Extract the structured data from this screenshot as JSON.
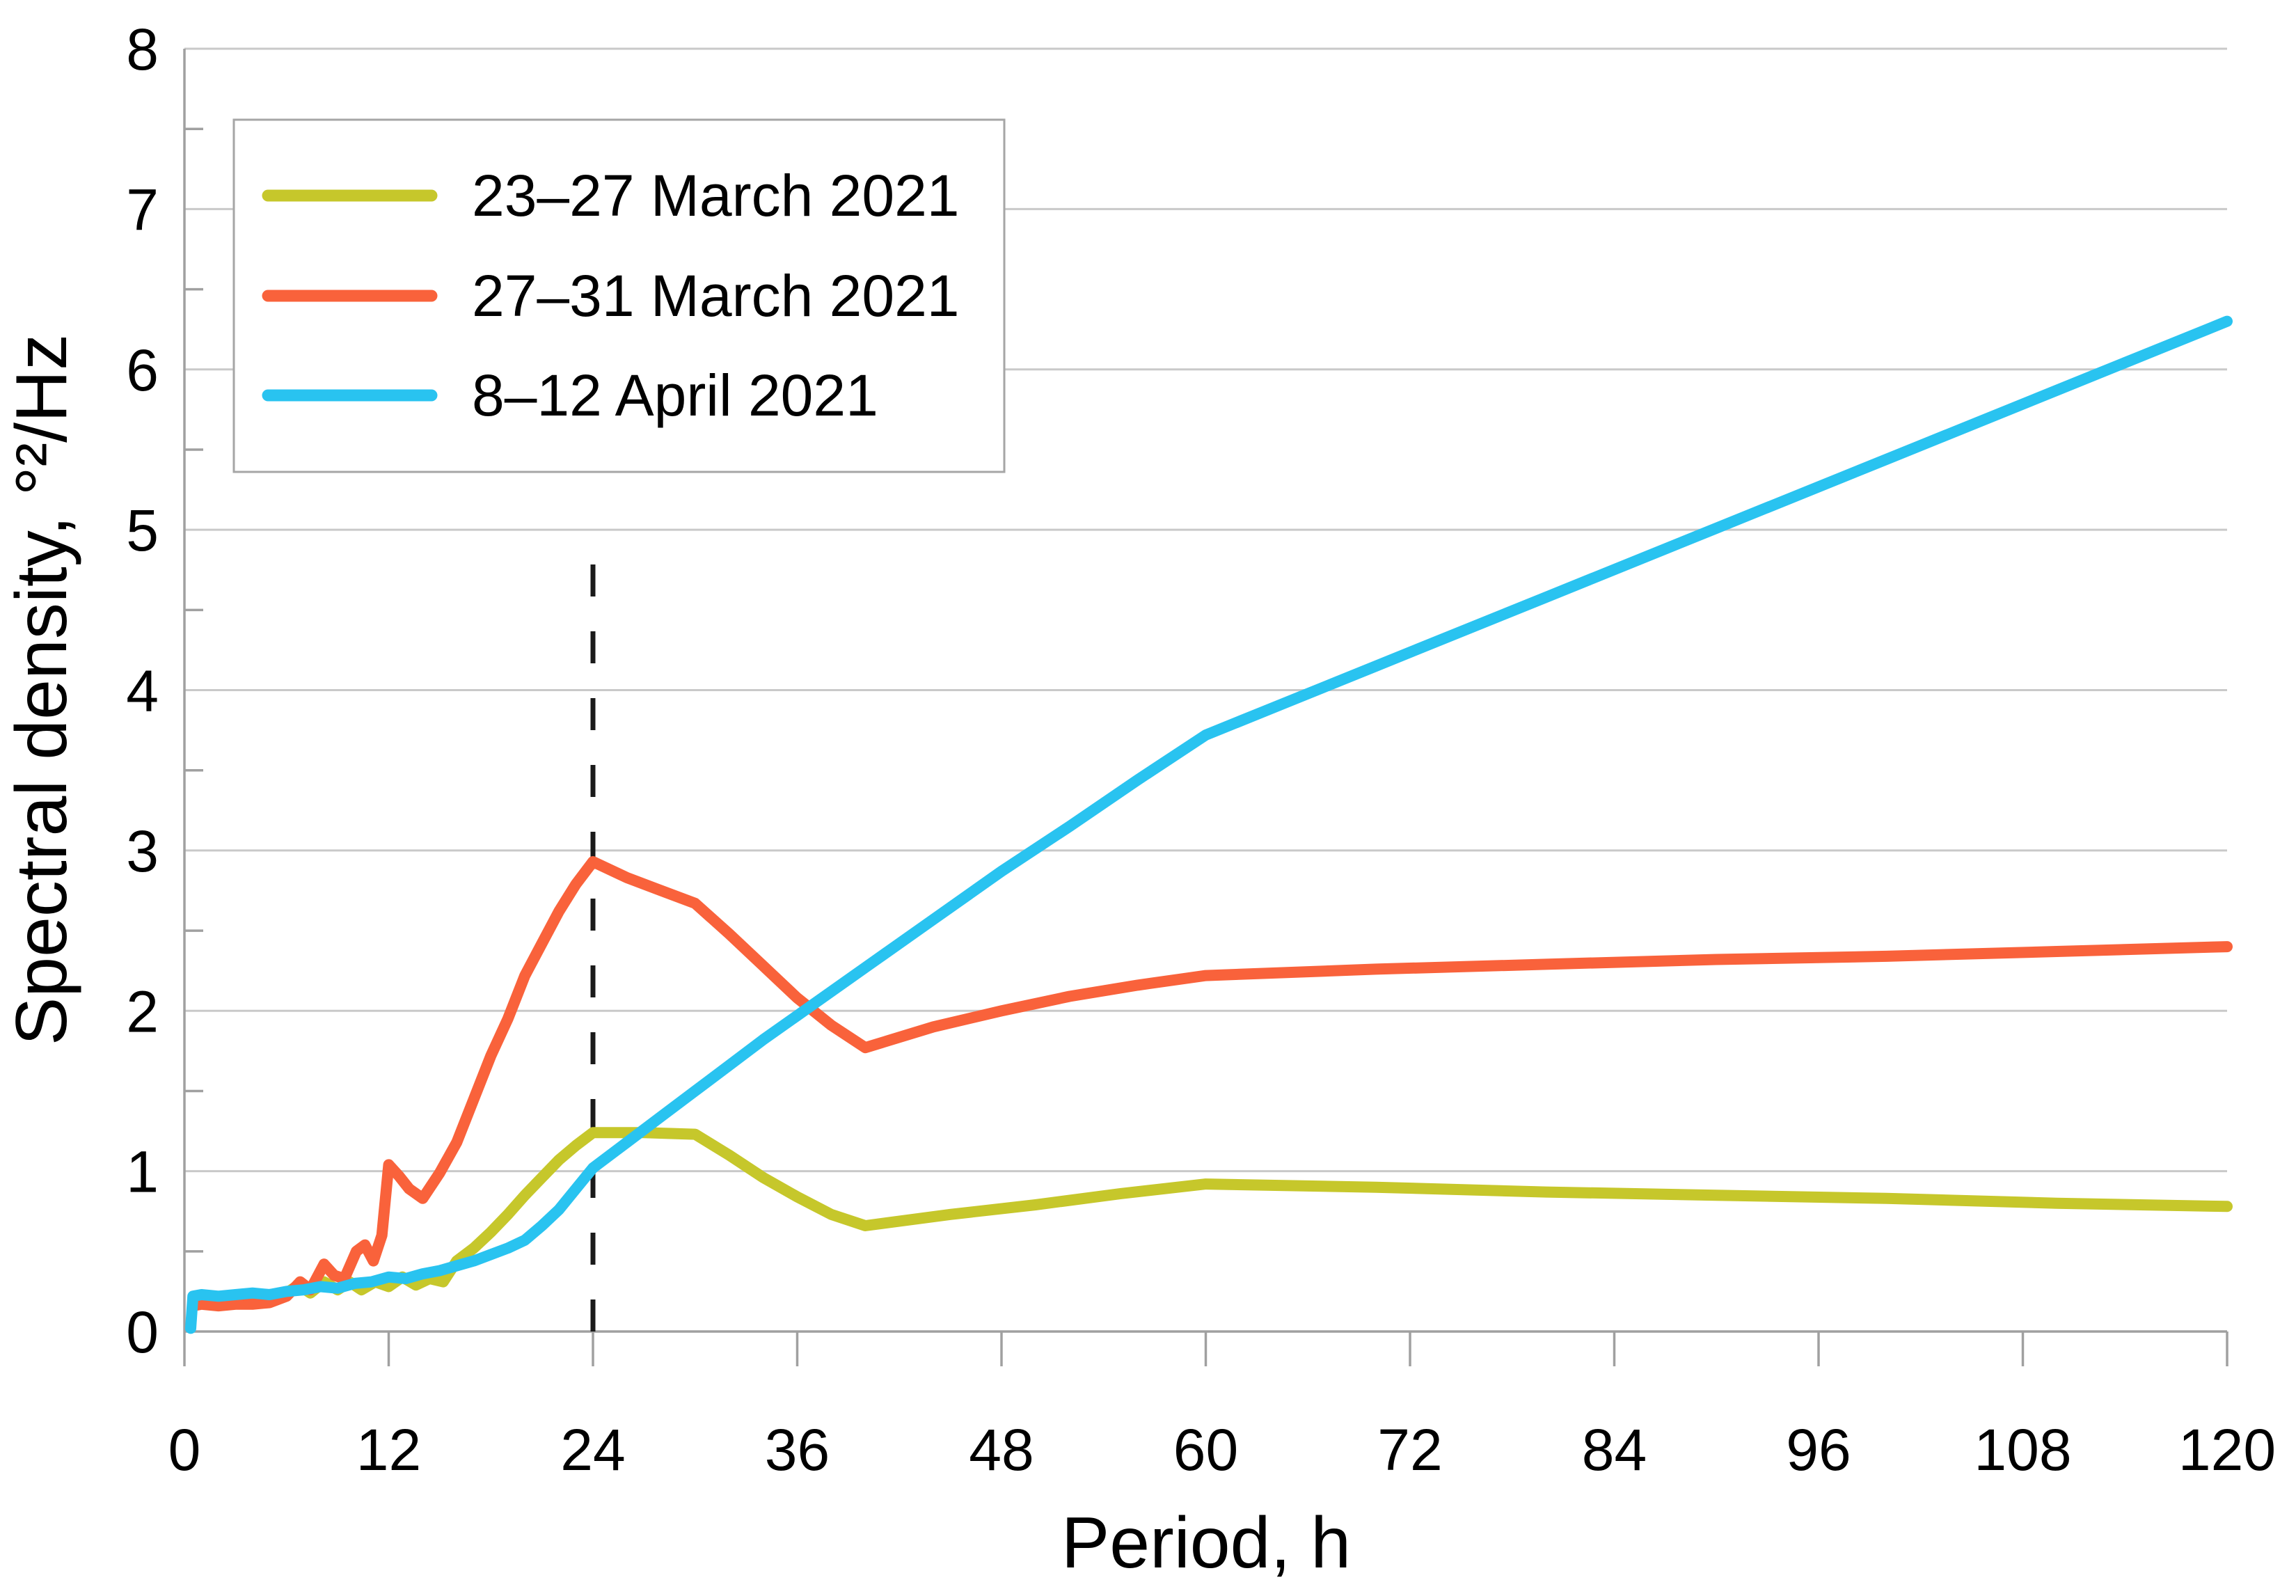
{
  "chart_data": {
    "type": "line",
    "title": "",
    "xlabel": "Period, h",
    "ylabel": "Spectral density, °²/Hz",
    "x_axis": {
      "min": 0,
      "max": 120,
      "tick_step": 12,
      "ticks": [
        0,
        12,
        24,
        36,
        48,
        60,
        72,
        84,
        96,
        108,
        120
      ]
    },
    "y_axis": {
      "min": 0,
      "max": 8,
      "tick_step": 1,
      "minor_tick_step": 0.5,
      "ticks": [
        0,
        1,
        2,
        3,
        4,
        5,
        6,
        7,
        8
      ]
    },
    "grid": "horizontal-only",
    "legend_position": "top-left",
    "annotation": {
      "type": "vertical-dashed-line",
      "x": 24,
      "y_bottom": 0,
      "y_top": 4.85
    },
    "series": [
      {
        "name": "23–27 March 2021",
        "color": "#c6c72b",
        "points": [
          [
            0.5,
            0.2
          ],
          [
            1,
            0.2
          ],
          [
            2,
            0.21
          ],
          [
            3,
            0.21
          ],
          [
            4,
            0.22
          ],
          [
            5,
            0.23
          ],
          [
            6,
            0.24
          ],
          [
            6.7,
            0.29
          ],
          [
            7.4,
            0.24
          ],
          [
            8.2,
            0.31
          ],
          [
            9,
            0.26
          ],
          [
            9.7,
            0.31
          ],
          [
            10.4,
            0.26
          ],
          [
            11.2,
            0.31
          ],
          [
            12,
            0.28
          ],
          [
            12.8,
            0.34
          ],
          [
            13.6,
            0.29
          ],
          [
            14.4,
            0.33
          ],
          [
            15.2,
            0.31
          ],
          [
            16,
            0.44
          ],
          [
            17,
            0.52
          ],
          [
            18,
            0.62
          ],
          [
            19,
            0.73
          ],
          [
            20,
            0.85
          ],
          [
            21,
            0.96
          ],
          [
            22,
            1.07
          ],
          [
            23,
            1.16
          ],
          [
            24,
            1.24
          ],
          [
            27,
            1.24
          ],
          [
            30,
            1.23
          ],
          [
            32,
            1.1
          ],
          [
            34,
            0.96
          ],
          [
            36,
            0.84
          ],
          [
            38,
            0.73
          ],
          [
            40,
            0.66
          ],
          [
            45,
            0.73
          ],
          [
            50,
            0.79
          ],
          [
            55,
            0.86
          ],
          [
            60,
            0.92
          ],
          [
            70,
            0.9
          ],
          [
            80,
            0.87
          ],
          [
            90,
            0.85
          ],
          [
            100,
            0.83
          ],
          [
            110,
            0.8
          ],
          [
            120,
            0.78
          ]
        ]
      },
      {
        "name": "27–31 March 2021",
        "color": "#f9623b",
        "points": [
          [
            0.5,
            0.16
          ],
          [
            1,
            0.17
          ],
          [
            2,
            0.16
          ],
          [
            3,
            0.17
          ],
          [
            4,
            0.17
          ],
          [
            5,
            0.18
          ],
          [
            6,
            0.22
          ],
          [
            6.8,
            0.31
          ],
          [
            7.4,
            0.26
          ],
          [
            8.2,
            0.42
          ],
          [
            8.8,
            0.35
          ],
          [
            9.4,
            0.33
          ],
          [
            10.1,
            0.5
          ],
          [
            10.6,
            0.54
          ],
          [
            11.1,
            0.44
          ],
          [
            11.6,
            0.6
          ],
          [
            12,
            1.04
          ],
          [
            12.6,
            0.97
          ],
          [
            13.2,
            0.89
          ],
          [
            14,
            0.83
          ],
          [
            15,
            0.99
          ],
          [
            16,
            1.18
          ],
          [
            17,
            1.45
          ],
          [
            18,
            1.72
          ],
          [
            19,
            1.95
          ],
          [
            20,
            2.22
          ],
          [
            21,
            2.42
          ],
          [
            22,
            2.62
          ],
          [
            23,
            2.79
          ],
          [
            24,
            2.93
          ],
          [
            26,
            2.83
          ],
          [
            28,
            2.75
          ],
          [
            30,
            2.67
          ],
          [
            32,
            2.48
          ],
          [
            34,
            2.28
          ],
          [
            36,
            2.08
          ],
          [
            38,
            1.91
          ],
          [
            40,
            1.77
          ],
          [
            44,
            1.9
          ],
          [
            48,
            2.0
          ],
          [
            52,
            2.09
          ],
          [
            56,
            2.16
          ],
          [
            60,
            2.22
          ],
          [
            70,
            2.26
          ],
          [
            80,
            2.29
          ],
          [
            90,
            2.32
          ],
          [
            100,
            2.34
          ],
          [
            110,
            2.37
          ],
          [
            120,
            2.4
          ]
        ]
      },
      {
        "name": "8–12 April 2021",
        "color": "#29c3f0",
        "points": [
          [
            0.37,
            0.02
          ],
          [
            0.5,
            0.22
          ],
          [
            1,
            0.23
          ],
          [
            2,
            0.22
          ],
          [
            3,
            0.23
          ],
          [
            4,
            0.24
          ],
          [
            5,
            0.23
          ],
          [
            6,
            0.25
          ],
          [
            7,
            0.26
          ],
          [
            8,
            0.28
          ],
          [
            9,
            0.27
          ],
          [
            10,
            0.3
          ],
          [
            11,
            0.31
          ],
          [
            12,
            0.34
          ],
          [
            13,
            0.33
          ],
          [
            14,
            0.36
          ],
          [
            15,
            0.38
          ],
          [
            16,
            0.41
          ],
          [
            17,
            0.44
          ],
          [
            18,
            0.48
          ],
          [
            19,
            0.52
          ],
          [
            20,
            0.57
          ],
          [
            21,
            0.66
          ],
          [
            22,
            0.76
          ],
          [
            23,
            0.89
          ],
          [
            24,
            1.02
          ],
          [
            26,
            1.18
          ],
          [
            28,
            1.34
          ],
          [
            30,
            1.5
          ],
          [
            32,
            1.66
          ],
          [
            34,
            1.82
          ],
          [
            36,
            1.97
          ],
          [
            40,
            2.27
          ],
          [
            44,
            2.57
          ],
          [
            48,
            2.87
          ],
          [
            52,
            3.15
          ],
          [
            56,
            3.44
          ],
          [
            60,
            3.72
          ],
          [
            70,
            4.15
          ],
          [
            80,
            4.58
          ],
          [
            90,
            5.01
          ],
          [
            100,
            5.44
          ],
          [
            110,
            5.87
          ],
          [
            120,
            6.3
          ]
        ]
      }
    ]
  },
  "colors": {
    "background": "#ffffff",
    "gridline": "#c9c9c9",
    "axis": "#a0a0a0",
    "minor_tick": "#a0a0a0",
    "legend_border": "#a6a6a6",
    "annotation_line": "#1a1a1a",
    "text": "#000000"
  }
}
